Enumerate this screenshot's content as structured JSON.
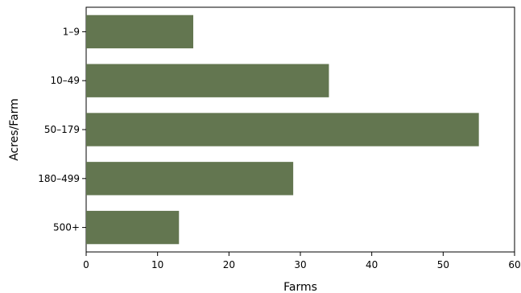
{
  "chart_data": {
    "type": "bar",
    "orientation": "horizontal",
    "categories": [
      "1–9",
      "10–49",
      "50–179",
      "180–499",
      "500+"
    ],
    "values": [
      15,
      34,
      55,
      29,
      13
    ],
    "title": "",
    "xlabel": "Farms",
    "ylabel": "Acres/Farm",
    "xlim": [
      0,
      60
    ],
    "xticks": [
      0,
      10,
      20,
      30,
      40,
      50,
      60
    ],
    "grid": false,
    "bar_color": "#637650"
  }
}
